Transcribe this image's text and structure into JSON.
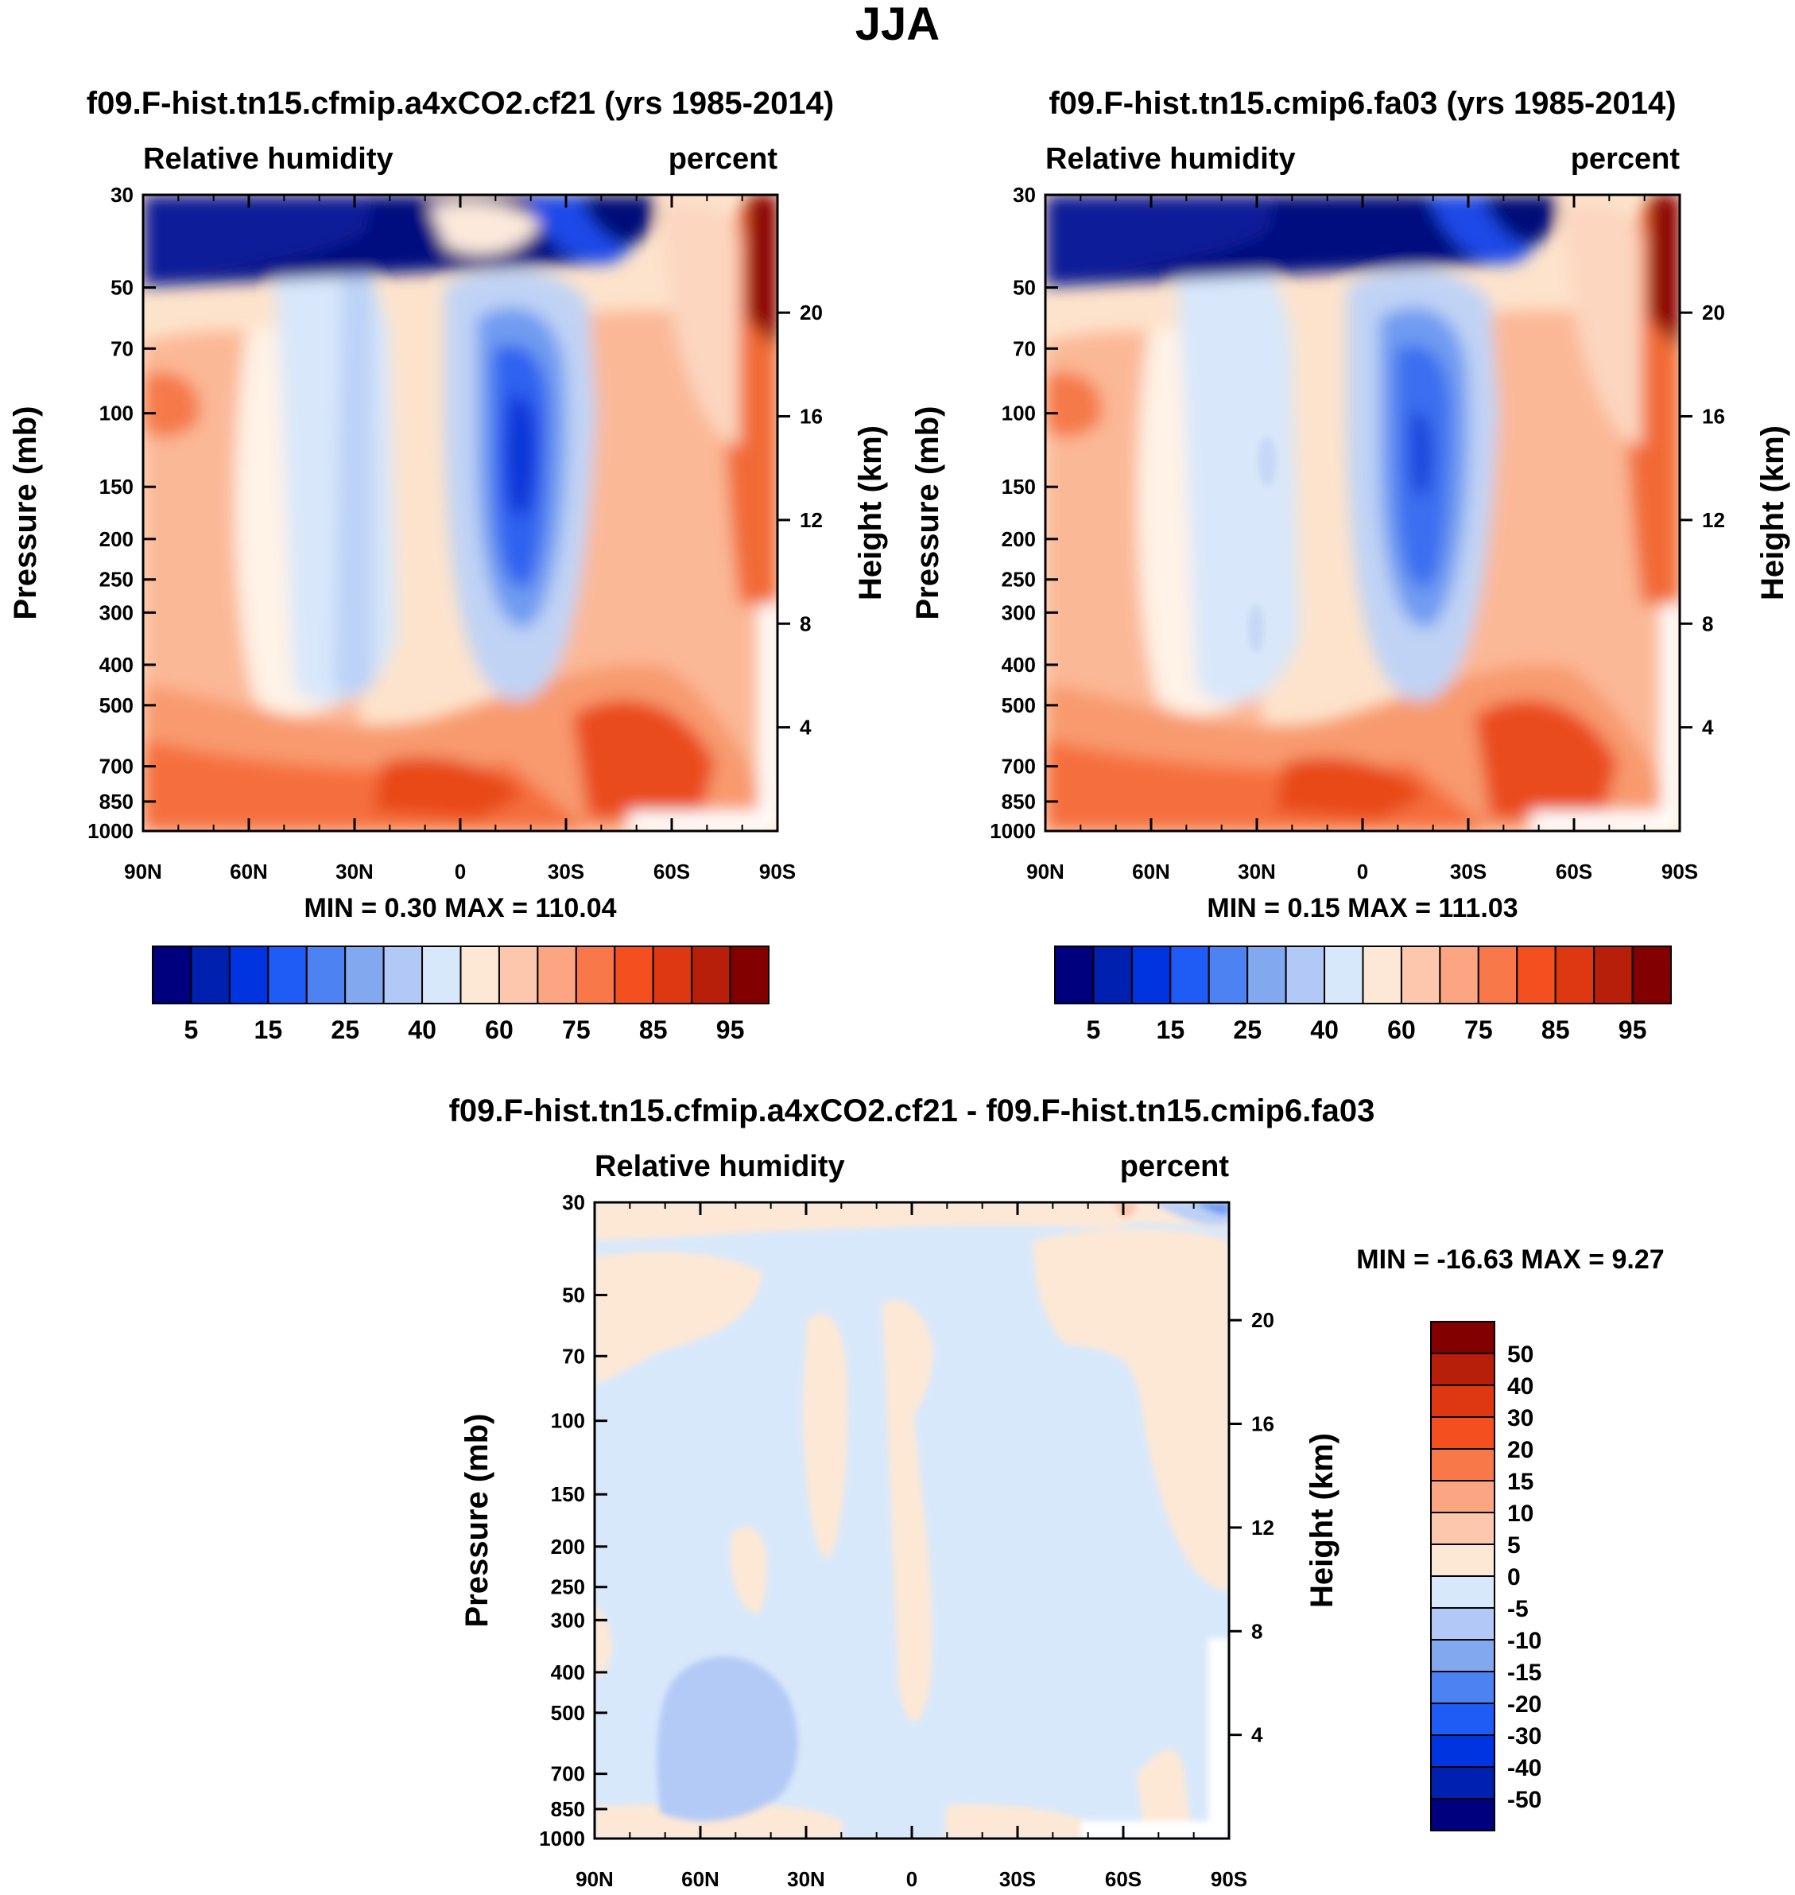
{
  "figure": {
    "title": "JJA"
  },
  "colors": {
    "abs_levels": [
      "#00007f",
      "#0020b0",
      "#0034e0",
      "#1e5cf5",
      "#4d82f2",
      "#82a8f0",
      "#b2c9f7",
      "#d8e8fb",
      "#fde8d6",
      "#fcc7ad",
      "#fba582",
      "#f8784a",
      "#f44f1e",
      "#dd3812",
      "#b81f0a",
      "#820000"
    ],
    "diff_levels": [
      "#00007f",
      "#0020b0",
      "#0034e0",
      "#1e5cf5",
      "#4d82f2",
      "#82a8f0",
      "#b2c9f7",
      "#d8e8fb",
      "#fde8d6",
      "#fcc7ad",
      "#fba582",
      "#f8784a",
      "#f44f1e",
      "#dd3812",
      "#b81f0a",
      "#820000"
    ]
  },
  "panels": [
    {
      "case": "f09.F-hist.tn15.cfmip.a4xCO2.cf21 (yrs 1985-2014)",
      "left_label": "Relative humidity",
      "right_label": "percent",
      "y_axis_label": "Pressure (mb)",
      "y2_axis_label": "Height (km)",
      "stats": "MIN =   0.30  MAX = 110.04"
    },
    {
      "case": "f09.F-hist.tn15.cmip6.fa03 (yrs 1985-2014)",
      "left_label": "Relative humidity",
      "right_label": "percent",
      "y_axis_label": "Pressure (mb)",
      "y2_axis_label": "Height (km)",
      "stats": "MIN =   0.15  MAX = 111.03"
    },
    {
      "case": "f09.F-hist.tn15.cfmip.a4xCO2.cf21 - f09.F-hist.tn15.cmip6.fa03",
      "left_label": "Relative humidity",
      "right_label": "percent",
      "y_axis_label": "Pressure (mb)",
      "y2_axis_label": "Height (km)",
      "stats": "MIN = -16.63  MAX =   9.27"
    }
  ],
  "chart_data": [
    {
      "type": "heatmap",
      "title": "f09.F-hist.tn15.cfmip.a4xCO2.cf21 (yrs 1985-2014)",
      "xlabel": "",
      "ylabel": "Pressure (mb)",
      "y2label": "Height (km)",
      "x_ticks": [
        "90N",
        "60N",
        "30N",
        "0",
        "30S",
        "60S",
        "90S"
      ],
      "y_ticks": [
        "30",
        "50",
        "70",
        "100",
        "150",
        "200",
        "250",
        "300",
        "400",
        "500",
        "700",
        "850",
        "1000"
      ],
      "y2_ticks": [
        "20",
        "16",
        "12",
        "8",
        "4"
      ],
      "xlim": [
        90,
        -90
      ],
      "ylim": [
        1000,
        30
      ],
      "colorbar_labels": [
        "5",
        "15",
        "25",
        "40",
        "60",
        "75",
        "85",
        "95"
      ],
      "colorbar_levels": [
        5,
        10,
        15,
        20,
        25,
        30,
        40,
        50,
        60,
        70,
        75,
        80,
        85,
        90,
        95
      ],
      "min": 0.3,
      "max": 110.04
    },
    {
      "type": "heatmap",
      "title": "f09.F-hist.tn15.cmip6.fa03 (yrs 1985-2014)",
      "xlabel": "",
      "ylabel": "Pressure (mb)",
      "y2label": "Height (km)",
      "x_ticks": [
        "90N",
        "60N",
        "30N",
        "0",
        "30S",
        "60S",
        "90S"
      ],
      "y_ticks": [
        "30",
        "50",
        "70",
        "100",
        "150",
        "200",
        "250",
        "300",
        "400",
        "500",
        "700",
        "850",
        "1000"
      ],
      "y2_ticks": [
        "20",
        "16",
        "12",
        "8",
        "4"
      ],
      "xlim": [
        90,
        -90
      ],
      "ylim": [
        1000,
        30
      ],
      "colorbar_labels": [
        "5",
        "15",
        "25",
        "40",
        "60",
        "75",
        "85",
        "95"
      ],
      "colorbar_levels": [
        5,
        10,
        15,
        20,
        25,
        30,
        40,
        50,
        60,
        70,
        75,
        80,
        85,
        90,
        95
      ],
      "min": 0.15,
      "max": 111.03
    },
    {
      "type": "heatmap",
      "title": "f09.F-hist.tn15.cfmip.a4xCO2.cf21 - f09.F-hist.tn15.cmip6.fa03",
      "xlabel": "",
      "ylabel": "Pressure (mb)",
      "y2label": "Height (km)",
      "x_ticks": [
        "90N",
        "60N",
        "30N",
        "0",
        "30S",
        "60S",
        "90S"
      ],
      "y_ticks": [
        "30",
        "50",
        "70",
        "100",
        "150",
        "200",
        "250",
        "300",
        "400",
        "500",
        "700",
        "850",
        "1000"
      ],
      "y2_ticks": [
        "20",
        "16",
        "12",
        "8",
        "4"
      ],
      "xlim": [
        90,
        -90
      ],
      "ylim": [
        1000,
        30
      ],
      "colorbar_labels": [
        "50",
        "40",
        "30",
        "20",
        "15",
        "10",
        "5",
        "0",
        "-5",
        "-10",
        "-15",
        "-20",
        "-30",
        "-40",
        "-50"
      ],
      "colorbar_levels": [
        50,
        40,
        30,
        20,
        15,
        10,
        5,
        0,
        -5,
        -10,
        -15,
        -20,
        -30,
        -40,
        -50
      ],
      "min": -16.63,
      "max": 9.27
    }
  ]
}
